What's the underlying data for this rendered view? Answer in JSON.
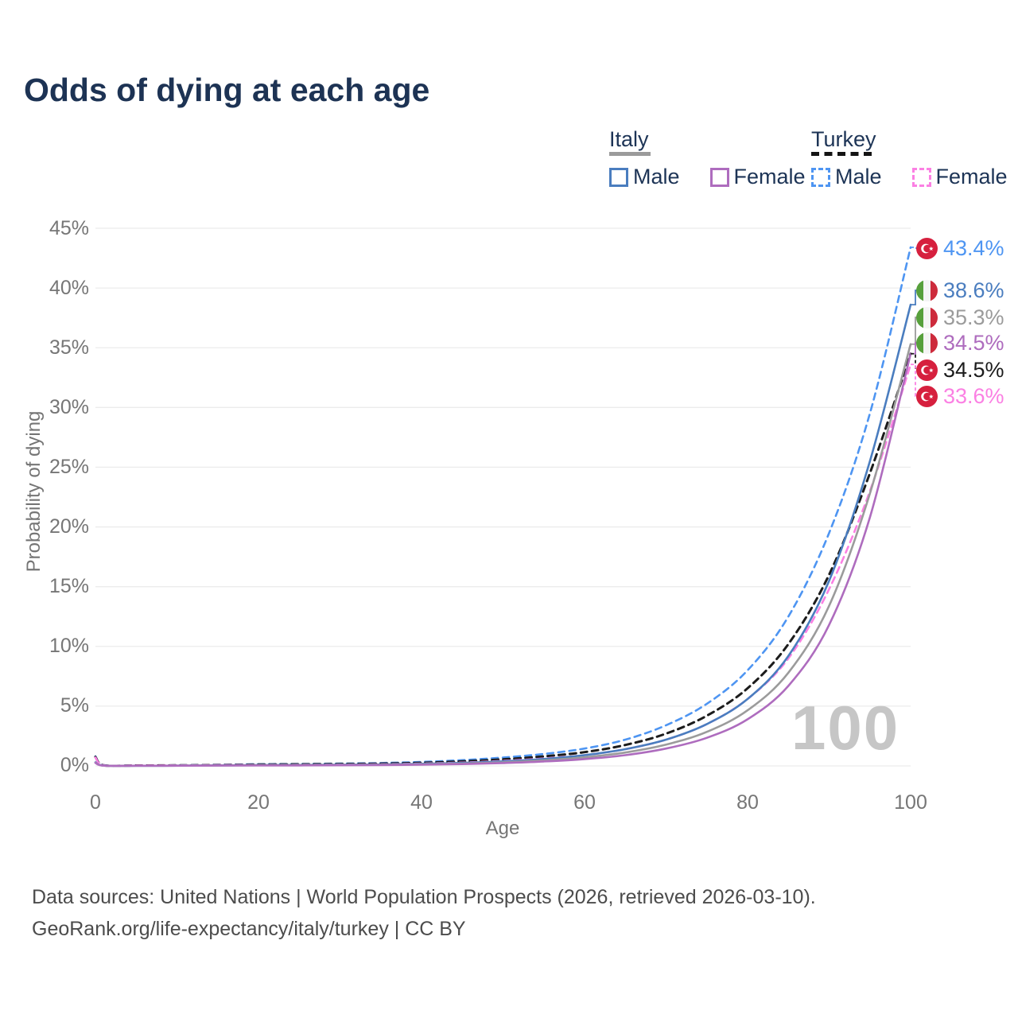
{
  "title": "Odds of dying at each age",
  "legend": {
    "italy_label": "Italy",
    "turkey_label": "Turkey",
    "italy_male_label": "Male",
    "italy_female_label": "Female",
    "turkey_male_label": "Male",
    "turkey_female_label": "Female"
  },
  "axes": {
    "y_title": "Probability of dying",
    "x_title": "Age",
    "y_ticks": [
      "45%",
      "40%",
      "35%",
      "30%",
      "25%",
      "20%",
      "15%",
      "10%",
      "5%",
      "0%"
    ],
    "x_ticks": [
      "0",
      "20",
      "40",
      "60",
      "80",
      "100"
    ]
  },
  "watermark": "100",
  "end_labels": [
    {
      "country": "Turkey",
      "series": "Male",
      "text": "43.4%",
      "color": "#4e95f2"
    },
    {
      "country": "Italy",
      "series": "Male",
      "text": "38.6%",
      "color": "#4a7dbf"
    },
    {
      "country": "Italy",
      "series": "Both sexes",
      "text": "35.3%",
      "color": "#9b9b9b"
    },
    {
      "country": "Italy",
      "series": "Female",
      "text": "34.5%",
      "color": "#ae6cbe"
    },
    {
      "country": "Turkey",
      "series": "Both sexes",
      "text": "34.5%",
      "color": "#1c1c1c"
    },
    {
      "country": "Turkey",
      "series": "Female",
      "text": "33.6%",
      "color": "#fb80e3"
    }
  ],
  "footer": {
    "line1": "Data sources: United Nations | World Population Prospects (2026, retrieved 2026-03-10).",
    "line2": "GeoRank.org/life-expectancy/italy/turkey | CC BY"
  },
  "chart_data": {
    "type": "line",
    "title": "Odds of dying at each age",
    "xlabel": "Age",
    "ylabel": "Probability of dying",
    "x_range": [
      0,
      100
    ],
    "y_range_percent": [
      0,
      45
    ],
    "grid": "horizontal lines every 5%, light gray",
    "legend_position": "top-right",
    "x": [
      0,
      1,
      5,
      10,
      15,
      20,
      25,
      30,
      35,
      40,
      45,
      50,
      55,
      60,
      65,
      70,
      75,
      80,
      85,
      90,
      95,
      100
    ],
    "series": [
      {
        "name": "Turkey Male",
        "country": "Turkey",
        "sex": "male",
        "line": "dashed",
        "color": "#4e95f2",
        "end_value_percent": 43.4,
        "values_percent": [
          0.8,
          0.06,
          0.04,
          0.05,
          0.09,
          0.14,
          0.16,
          0.19,
          0.24,
          0.33,
          0.48,
          0.7,
          1.0,
          1.45,
          2.2,
          3.4,
          5.2,
          8.0,
          12.5,
          19.5,
          29.5,
          43.4
        ]
      },
      {
        "name": "Italy Male",
        "country": "Italy",
        "sex": "male",
        "line": "solid",
        "color": "#4a7dbf",
        "end_value_percent": 38.6,
        "values_percent": [
          0.3,
          0.025,
          0.015,
          0.02,
          0.04,
          0.07,
          0.08,
          0.09,
          0.12,
          0.17,
          0.25,
          0.38,
          0.58,
          0.9,
          1.4,
          2.2,
          3.5,
          5.6,
          9.2,
          15.5,
          25.5,
          38.6
        ]
      },
      {
        "name": "Italy Both sexes",
        "country": "Italy",
        "sex": "both",
        "line": "solid",
        "color": "#9b9b9b",
        "end_value_percent": 35.3,
        "values_percent": [
          0.27,
          0.022,
          0.013,
          0.017,
          0.03,
          0.05,
          0.06,
          0.07,
          0.09,
          0.13,
          0.2,
          0.3,
          0.46,
          0.72,
          1.12,
          1.78,
          2.85,
          4.65,
          7.8,
          13.4,
          22.8,
          35.3
        ]
      },
      {
        "name": "Italy Female",
        "country": "Italy",
        "sex": "female",
        "line": "solid",
        "color": "#ae6cbe",
        "end_value_percent": 34.5,
        "values_percent": [
          0.25,
          0.02,
          0.012,
          0.015,
          0.025,
          0.035,
          0.04,
          0.05,
          0.07,
          0.1,
          0.15,
          0.24,
          0.37,
          0.57,
          0.9,
          1.45,
          2.35,
          3.9,
          6.7,
          11.8,
          20.8,
          34.5
        ]
      },
      {
        "name": "Turkey Both sexes",
        "country": "Turkey",
        "sex": "both",
        "line": "dashed",
        "color": "#1c1c1c",
        "end_value_percent": 34.5,
        "values_percent": [
          0.75,
          0.055,
          0.035,
          0.045,
          0.07,
          0.11,
          0.13,
          0.15,
          0.19,
          0.26,
          0.38,
          0.55,
          0.8,
          1.15,
          1.75,
          2.7,
          4.2,
          6.5,
          10.2,
          16.0,
          24.5,
          34.5
        ]
      },
      {
        "name": "Turkey Female",
        "country": "Turkey",
        "sex": "female",
        "line": "dashed",
        "color": "#fb80e3",
        "end_value_percent": 33.6,
        "values_percent": [
          0.7,
          0.05,
          0.03,
          0.04,
          0.06,
          0.08,
          0.09,
          0.11,
          0.14,
          0.2,
          0.28,
          0.42,
          0.62,
          0.9,
          1.4,
          2.2,
          3.5,
          5.6,
          9.0,
          14.8,
          23.0,
          33.6
        ]
      }
    ]
  }
}
